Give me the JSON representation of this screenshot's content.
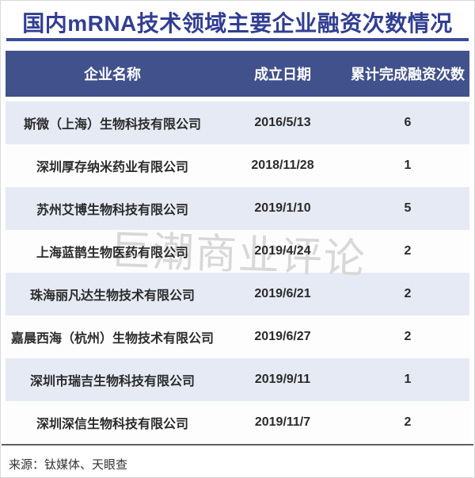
{
  "title": "国内mRNA技术领域主要企业融资次数情况",
  "watermark": "巨潮商业评论",
  "source": "来源：钛媒体、天眼查",
  "colors": {
    "title_text": "#323e92",
    "divider": "#3b4c9a",
    "header_bg": "#41518b",
    "header_text": "#ffffff",
    "row_alt_bg": "#e6eaf5",
    "row_bg": "#fdfdfe",
    "body_text": "#2b2b2b",
    "watermark_text": "#d8d8d8"
  },
  "chart_data": {
    "type": "table",
    "title": "国内mRNA技术领域主要企业融资次数情况",
    "columns": [
      "企业名称",
      "成立日期",
      "累计完成融资次数"
    ],
    "rows": [
      [
        "斯微（上海）生物科技有限公司",
        "2016/5/13",
        "6"
      ],
      [
        "深圳厚存纳米药业有限公司",
        "2018/11/28",
        "1"
      ],
      [
        "苏州艾博生物科技有限公司",
        "2019/1/10",
        "5"
      ],
      [
        "上海蓝鹊生物医药有限公司",
        "2019/4/24",
        "2"
      ],
      [
        "珠海丽凡达生物技术有限公司",
        "2019/6/21",
        "2"
      ],
      [
        "嘉晨西海（杭州）生物技术有限公司",
        "2019/6/27",
        "2"
      ],
      [
        "深圳市瑞吉生物科技有限公司",
        "2019/9/11",
        "1"
      ],
      [
        "深圳深信生物科技有限公司",
        "2019/11/7",
        "2"
      ]
    ],
    "source": "来源：钛媒体、天眼查",
    "watermark": "巨潮商业评论"
  }
}
